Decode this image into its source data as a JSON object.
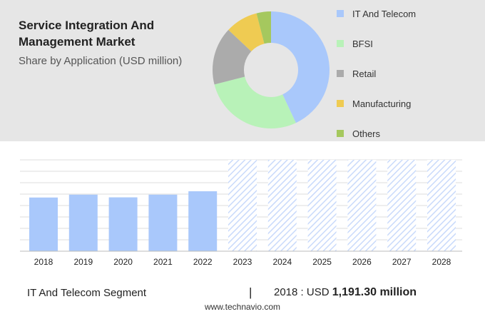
{
  "header": {
    "title": "Service Integration And Management Market",
    "subtitle": "Share by Application (USD million)"
  },
  "colors": {
    "panel_bg": "#e6e6e6",
    "bar": "#a9c8fb",
    "forecast_hatch": "#c9dafb",
    "grid": "#dcdcdc"
  },
  "chart_data": [
    {
      "type": "pie",
      "variant": "donut",
      "legend_position": "right",
      "labels": [
        "IT And Telecom",
        "BFSI",
        "Retail",
        "Manufacturing",
        "Others"
      ],
      "values": [
        43,
        28,
        16,
        9,
        4
      ],
      "colors": [
        "#a9c8fb",
        "#b8f2b8",
        "#ababab",
        "#efcb52",
        "#a5c85e"
      ]
    },
    {
      "type": "bar",
      "categories": [
        "2018",
        "2019",
        "2020",
        "2021",
        "2022",
        "2023",
        "2024",
        "2025",
        "2026",
        "2027",
        "2028"
      ],
      "values": [
        1191.3,
        1255,
        1195,
        1255,
        1330,
        null,
        null,
        null,
        null,
        null,
        null
      ],
      "forecast_categories": [
        "2023",
        "2024",
        "2025",
        "2026",
        "2027",
        "2028"
      ],
      "grid": true,
      "ylim": [
        0,
        1500
      ]
    }
  ],
  "footer": {
    "segment": "IT And Telecom Segment",
    "separator": "|",
    "year_label": "2018 : USD",
    "value": "1,191.30 million",
    "source": "www.technavio.com"
  }
}
